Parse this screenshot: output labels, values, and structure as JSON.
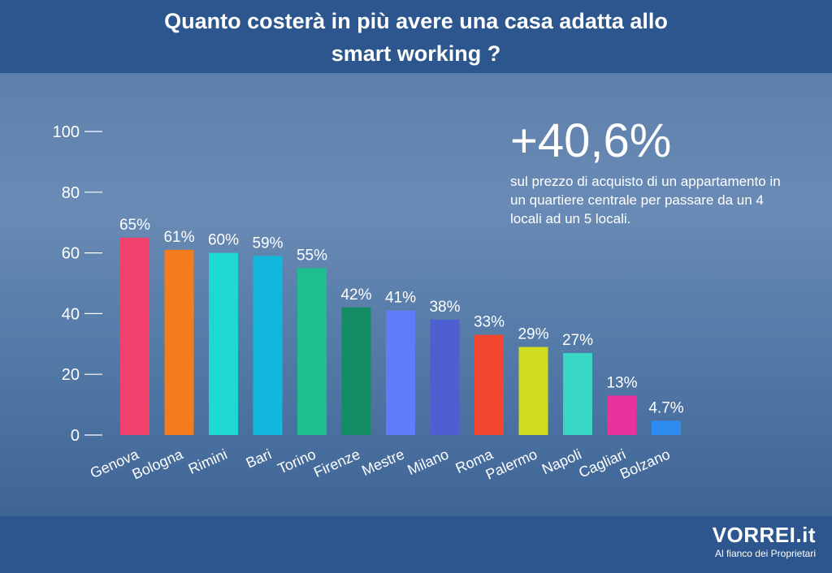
{
  "header": {
    "title_line1": "Quanto costerà in più avere una casa adatta allo",
    "title_line2": "smart working ?"
  },
  "callout": {
    "big": "+40,6%",
    "text": "sul prezzo di acquisto di un appartamento in un quartiere centrale per passare da un 4 locali ad un 5 locali."
  },
  "footer": {
    "brand": "VORREI.it",
    "tagline": "Al fianco dei Proprietari"
  },
  "chart_data": {
    "type": "bar",
    "categories": [
      "Genova",
      "Bologna",
      "Rimini",
      "Bari",
      "Torino",
      "Firenze",
      "Mestre",
      "Milano",
      "Roma",
      "Palermo",
      "Napoli",
      "Cagliari",
      "Bolzano"
    ],
    "values": [
      65,
      61,
      60,
      59,
      55,
      42,
      41,
      38,
      33,
      29,
      27,
      13,
      4.7
    ],
    "labels": [
      "65%",
      "61%",
      "60%",
      "59%",
      "55%",
      "42%",
      "41%",
      "38%",
      "33%",
      "29%",
      "27%",
      "13%",
      "4.7%"
    ],
    "colors": [
      "#f1416c",
      "#f47c1c",
      "#1ed9d0",
      "#13b7dd",
      "#1dbf8f",
      "#138c64",
      "#5f7cf9",
      "#4e5fd2",
      "#f2462e",
      "#d2dc1f",
      "#38d7c3",
      "#e8339c",
      "#2c8cf0"
    ],
    "yticks": [
      0,
      20,
      40,
      60,
      80,
      100
    ],
    "ylim": [
      0,
      100
    ],
    "xlabel": "",
    "ylabel": ""
  }
}
